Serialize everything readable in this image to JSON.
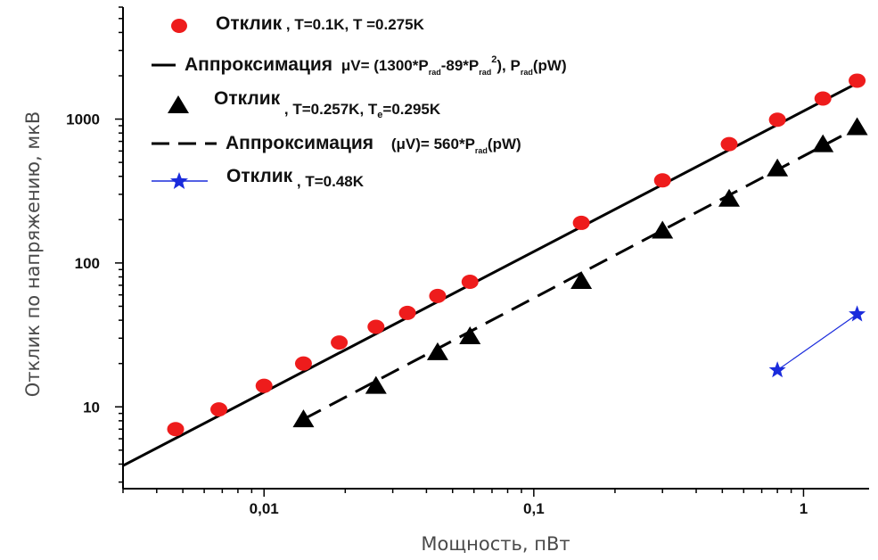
{
  "chart_data": {
    "type": "scatter",
    "x_scale": "log",
    "y_scale": "log",
    "xlim": [
      0.003,
      1.75
    ],
    "ylim": [
      2.7,
      6000
    ],
    "xlabel": "Мощность, пВт",
    "ylabel": "Отклик по напряжению, мкВ",
    "x_ticks": [
      {
        "value": 0.01,
        "label": "0,01"
      },
      {
        "value": 0.1,
        "label": "0,1"
      },
      {
        "value": 1,
        "label": "1"
      }
    ],
    "y_ticks": [
      {
        "value": 10,
        "label": "10"
      },
      {
        "value": 100,
        "label": "100"
      },
      {
        "value": 1000,
        "label": "1000"
      }
    ],
    "grid": false,
    "legend_position": "top-left",
    "series": [
      {
        "key": "s1",
        "kind": "points",
        "marker": "circle",
        "color": "#ee1c1c",
        "x": [
          0.0047,
          0.0068,
          0.01,
          0.014,
          0.019,
          0.026,
          0.034,
          0.044,
          0.058,
          0.15,
          0.3,
          0.53,
          0.8,
          1.18,
          1.58
        ],
        "y": [
          7,
          9.6,
          14,
          20,
          28,
          36,
          45,
          59,
          74,
          190,
          375,
          670,
          990,
          1390,
          1850
        ]
      },
      {
        "key": "s2",
        "kind": "line",
        "dash": "solid",
        "color": "#000000",
        "x": [
          0.003,
          1.6
        ],
        "y": [
          3.9,
          1800
        ]
      },
      {
        "key": "s3",
        "kind": "points",
        "marker": "triangle",
        "color": "#000000",
        "x": [
          0.014,
          0.026,
          0.044,
          0.058,
          0.15,
          0.3,
          0.53,
          0.8,
          1.18,
          1.58
        ],
        "y": [
          8.2,
          14,
          24,
          31,
          75,
          168,
          280,
          455,
          670,
          880
        ]
      },
      {
        "key": "s4",
        "kind": "line",
        "dash": "dashed",
        "color": "#000000",
        "x": [
          0.014,
          1.6
        ],
        "y": [
          8.2,
          880
        ]
      },
      {
        "key": "s5",
        "kind": "points+line",
        "marker": "star",
        "color": "#1a2bdc",
        "x": [
          0.8,
          1.58
        ],
        "y": [
          18,
          44
        ]
      }
    ],
    "legend": [
      {
        "key": "s1",
        "symbol": "circle",
        "parts": [
          "Отклик",
          " , T=0.1K, T =0.275K"
        ]
      },
      {
        "key": "s2",
        "symbol": "solid-line",
        "parts": [
          "Аппроксимация",
          "μV= (1300*P",
          "rad",
          "-89*P",
          "rad",
          "2",
          "), P",
          "rad",
          "(pW)"
        ]
      },
      {
        "key": "s3",
        "symbol": "triangle",
        "parts": [
          "Отклик",
          " , T=0.257K, T",
          "e",
          "=0.295K"
        ]
      },
      {
        "key": "s4",
        "symbol": "dashed-line",
        "parts": [
          "Аппроксимация",
          "(μV)= 560*P",
          "rad",
          "(pW)"
        ]
      },
      {
        "key": "s5",
        "symbol": "star-line",
        "parts": [
          "Отклик",
          " , T=0.48K"
        ]
      }
    ]
  }
}
